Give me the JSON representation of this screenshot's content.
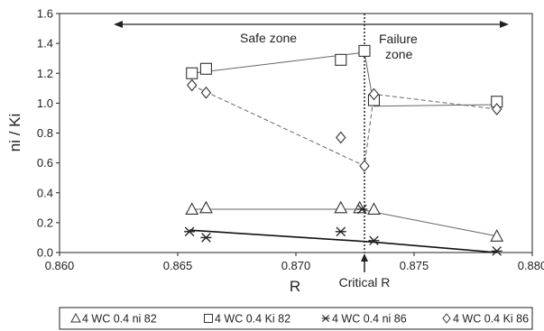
{
  "chart_data": {
    "type": "scatter",
    "xlabel": "R",
    "ylabel": "ni / Ki",
    "xlim": [
      0.86,
      0.88
    ],
    "ylim": [
      0.0,
      1.6
    ],
    "xticks": [
      "0.860",
      "0.865",
      "0.870",
      "0.875",
      "0.880"
    ],
    "yticks": [
      "0.0",
      "0.2",
      "0.4",
      "0.6",
      "0.8",
      "1.0",
      "1.2",
      "1.4",
      "1.6"
    ],
    "xtick_values": [
      0.86,
      0.865,
      0.87,
      0.875,
      0.88
    ],
    "ytick_values": [
      0.0,
      0.2,
      0.4,
      0.6,
      0.8,
      1.0,
      1.2,
      1.4,
      1.6
    ],
    "grid": false,
    "legend_position": "bottom",
    "critical_line_x": 0.8729,
    "annotations": {
      "safe_zone": "Safe zone",
      "failure_zone_line1": "Failure",
      "failure_zone_line2": "zone",
      "critical_r": "Critical R"
    },
    "series": [
      {
        "name": "4 WC 0.4 ni 82",
        "marker": "triangle",
        "line_style": "solid",
        "points": [
          [
            0.8656,
            0.29
          ],
          [
            0.8662,
            0.3
          ],
          [
            0.8719,
            0.3
          ],
          [
            0.8727,
            0.3
          ],
          [
            0.8733,
            0.29
          ],
          [
            0.8785,
            0.11
          ]
        ],
        "line": [
          [
            0.8656,
            0.29
          ],
          [
            0.8727,
            0.29
          ],
          [
            0.8785,
            0.11
          ]
        ]
      },
      {
        "name": "4 WC 0.4 Ki 82",
        "marker": "square",
        "line_style": "solid",
        "points": [
          [
            0.8656,
            1.2
          ],
          [
            0.8662,
            1.23
          ],
          [
            0.8719,
            1.29
          ],
          [
            0.8729,
            1.35
          ],
          [
            0.8733,
            1.02
          ],
          [
            0.8785,
            1.01
          ]
        ],
        "line": [
          [
            0.8656,
            1.2
          ],
          [
            0.8729,
            1.34
          ],
          [
            0.8733,
            0.98
          ],
          [
            0.8785,
            0.99
          ]
        ]
      },
      {
        "name": "4 WC 0.4 ni 86",
        "marker": "asterisk",
        "line_style": "solid",
        "points": [
          [
            0.8655,
            0.14
          ],
          [
            0.8662,
            0.1
          ],
          [
            0.8719,
            0.14
          ],
          [
            0.8728,
            0.29
          ],
          [
            0.8733,
            0.08
          ],
          [
            0.8785,
            0.01
          ]
        ],
        "line": [
          [
            0.8655,
            0.15
          ],
          [
            0.8733,
            0.07
          ],
          [
            0.8785,
            0.0
          ]
        ]
      },
      {
        "name": "4 WC 0.4 Ki 86",
        "marker": "diamond",
        "line_style": "dashed",
        "points": [
          [
            0.8656,
            1.12
          ],
          [
            0.8662,
            1.07
          ],
          [
            0.8719,
            0.77
          ],
          [
            0.8729,
            0.58
          ],
          [
            0.8733,
            1.06
          ],
          [
            0.8785,
            0.96
          ]
        ],
        "line": [
          [
            0.8656,
            1.12
          ],
          [
            0.8729,
            0.58
          ],
          [
            0.8733,
            1.06
          ],
          [
            0.8785,
            0.96
          ]
        ]
      }
    ]
  }
}
